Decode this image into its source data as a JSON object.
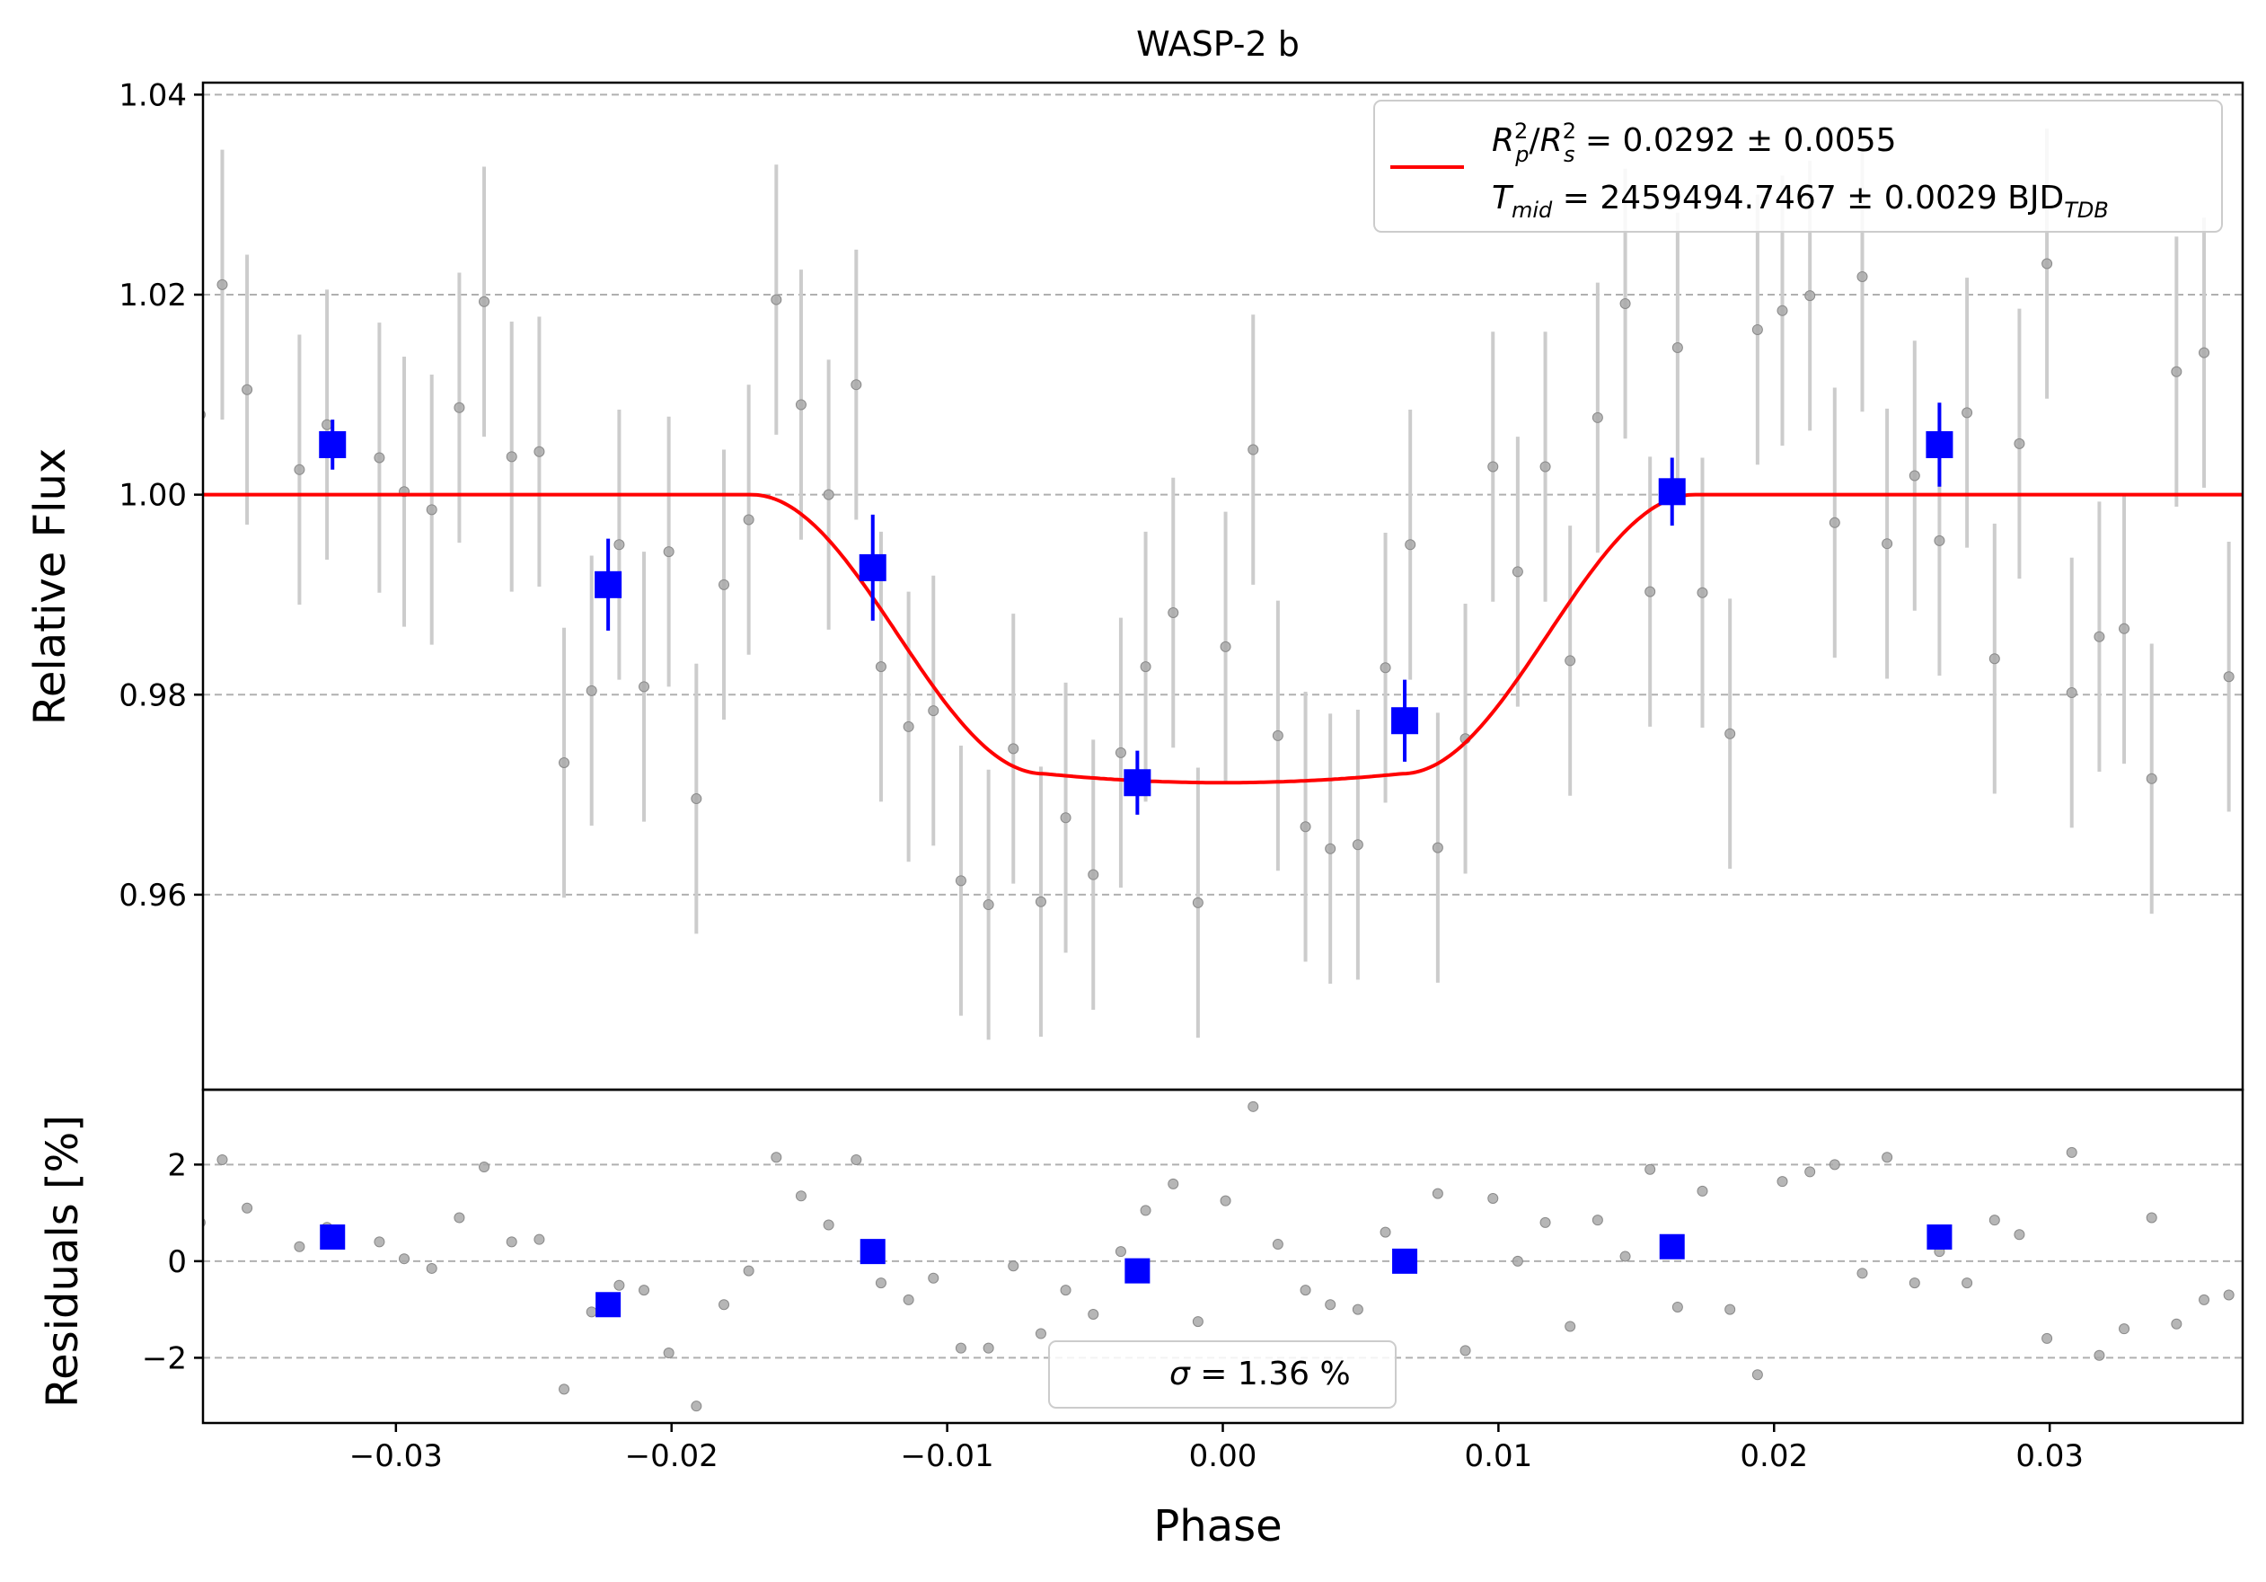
{
  "chart_data": [
    {
      "panel": "main",
      "type": "scatter",
      "title": "WASP-2 b",
      "xlabel": "",
      "ylabel": "Relative Flux",
      "xlim": [
        -0.037,
        0.037
      ],
      "ylim": [
        0.9405,
        1.0412
      ],
      "yticks": [
        "0.96",
        "0.98",
        "1.00",
        "1.02",
        "1.04"
      ],
      "ytick_values": [
        0.96,
        0.98,
        1.0,
        1.02,
        1.04
      ],
      "grid": "horizontal dashed",
      "legend_placement": "upper-right",
      "legend": {
        "line1": {
          "R": "R",
          "p": "p",
          "s": "s",
          "exp": "2",
          "rest": " = 0.0292 ± 0.0055"
        },
        "line2": {
          "T": "T",
          "mid": "mid",
          "rest": " = 2459494.7467 ± 0.0029 BJD",
          "sub": "TDB"
        }
      },
      "colors": {
        "raw": "#a9a9a9",
        "raw_err": "#cccccc",
        "binned": "#0000ff",
        "model": "#ff0000",
        "grid": "#b0b0b0"
      },
      "raw_series": {
        "x": [
          -0.0371,
          -0.0363,
          -0.0354,
          -0.0335,
          -0.0325,
          -0.0306,
          -0.0297,
          -0.0287,
          -0.0277,
          -0.0268,
          -0.0258,
          -0.0248,
          -0.0239,
          -0.0229,
          -0.0219,
          -0.021,
          -0.0201,
          -0.0191,
          -0.0181,
          -0.0172,
          -0.0162,
          -0.0153,
          -0.0143,
          -0.0133,
          -0.0124,
          -0.0114,
          -0.0105,
          -0.0095,
          -0.0085,
          -0.0076,
          -0.0066,
          -0.0057,
          -0.0047,
          -0.0037,
          -0.0028,
          -0.0018,
          -0.0009,
          0.0001,
          0.0011,
          0.002,
          0.003,
          0.0039,
          0.0049,
          0.0059,
          0.0068,
          0.0078,
          0.0088,
          0.0098,
          0.0107,
          0.0117,
          0.0126,
          0.0136,
          0.0146,
          0.0155,
          0.0165,
          0.0174,
          0.0184,
          0.0194,
          0.0203,
          0.0213,
          0.0222,
          0.0232,
          0.0241,
          0.0251,
          0.026,
          0.027,
          0.028,
          0.0289,
          0.0299,
          0.0308,
          0.0318,
          0.0327,
          0.0337,
          0.0346,
          0.0356,
          0.0365
        ],
        "y": [
          1.008,
          1.021,
          1.0105,
          1.0025,
          1.007,
          1.0037,
          1.0003,
          0.9985,
          1.0087,
          1.0193,
          1.0038,
          1.0043,
          0.9732,
          0.9804,
          0.995,
          0.9808,
          0.9943,
          0.9696,
          0.991,
          0.9975,
          1.0195,
          1.009,
          1.0,
          1.011,
          0.9828,
          0.9768,
          0.9784,
          0.9614,
          0.959,
          0.9746,
          0.9593,
          0.9677,
          0.962,
          0.9742,
          0.9828,
          0.9882,
          0.9592,
          0.9848,
          1.0045,
          0.9759,
          0.9668,
          0.9646,
          0.965,
          0.9827,
          0.995,
          0.9647,
          0.9756,
          1.0028,
          0.9923,
          1.0028,
          0.9834,
          1.0077,
          1.0191,
          0.9903,
          1.0147,
          0.9902,
          0.9761,
          1.0165,
          1.0184,
          1.0199,
          0.9972,
          1.0218,
          0.9951,
          1.0019,
          0.9954,
          1.0082,
          0.9836,
          1.0051,
          1.0231,
          0.9802,
          0.9858,
          0.9866,
          0.9716,
          1.0123,
          1.0142,
          0.9818
        ],
        "err": 0.0135
      },
      "binned_series": {
        "x": [
          -0.0323,
          -0.0223,
          -0.0127,
          -0.0031,
          0.0066,
          0.0163,
          0.026
        ],
        "y": [
          1.005,
          0.991,
          0.9927,
          0.9712,
          0.9774,
          1.0003,
          1.005
        ],
        "err": [
          0.0025,
          0.0046,
          0.0053,
          0.0032,
          0.0041,
          0.0034,
          0.0042
        ]
      },
      "model": {
        "baseline": 1.0,
        "depth": 0.0279,
        "t1": -0.0171,
        "t2": -0.0065,
        "t3": 0.0065,
        "t4": 0.0171
      }
    },
    {
      "panel": "residuals",
      "type": "scatter",
      "title": "",
      "xlabel": "Phase",
      "ylabel": "Residuals [%]",
      "xlim": [
        -0.037,
        0.037
      ],
      "ylim": [
        -3.35,
        3.55
      ],
      "xticks": [
        "−0.03",
        "−0.02",
        "−0.01",
        "0.00",
        "0.01",
        "0.02",
        "0.03"
      ],
      "xtick_values": [
        -0.03,
        -0.02,
        -0.01,
        0.0,
        0.01,
        0.02,
        0.03
      ],
      "yticks": [
        "−2",
        "0",
        "2"
      ],
      "ytick_values": [
        -2,
        0,
        2
      ],
      "grid": "horizontal dashed",
      "legend_placement": "lower-center",
      "legend": {
        "sigma": "σ",
        "rest": " = 1.36 %"
      },
      "raw_series": {
        "x": [
          -0.0371,
          -0.0363,
          -0.0354,
          -0.0335,
          -0.0325,
          -0.0306,
          -0.0297,
          -0.0287,
          -0.0277,
          -0.0268,
          -0.0258,
          -0.0248,
          -0.0239,
          -0.0229,
          -0.0219,
          -0.021,
          -0.0201,
          -0.0191,
          -0.0181,
          -0.0172,
          -0.0162,
          -0.0153,
          -0.0143,
          -0.0133,
          -0.0124,
          -0.0114,
          -0.0105,
          -0.0095,
          -0.0085,
          -0.0076,
          -0.0066,
          -0.0057,
          -0.0047,
          -0.0037,
          -0.0028,
          -0.0018,
          -0.0009,
          0.0001,
          0.0011,
          0.002,
          0.003,
          0.0039,
          0.0049,
          0.0059,
          0.0068,
          0.0078,
          0.0088,
          0.0098,
          0.0107,
          0.0117,
          0.0126,
          0.0136,
          0.0146,
          0.0155,
          0.0165,
          0.0174,
          0.0184,
          0.0194,
          0.0203,
          0.0213,
          0.0222,
          0.0232,
          0.0241,
          0.0251,
          0.026,
          0.027,
          0.028,
          0.0289,
          0.0299,
          0.0308,
          0.0318,
          0.0327,
          0.0337,
          0.0346,
          0.0356,
          0.0365
        ],
        "y": [
          0.8,
          2.1,
          1.1,
          0.3,
          0.7,
          0.4,
          0.05,
          -0.15,
          0.9,
          1.95,
          0.4,
          0.45,
          -2.65,
          -1.05,
          -0.5,
          -0.6,
          -1.9,
          -3.0,
          -0.9,
          -0.2,
          2.15,
          1.35,
          0.75,
          2.1,
          -0.45,
          -0.8,
          -0.35,
          -1.8,
          -1.8,
          -0.1,
          -1.5,
          -0.6,
          -1.1,
          0.2,
          1.05,
          1.6,
          -1.25,
          1.25,
          3.2,
          0.35,
          -0.6,
          -0.9,
          -1.0,
          0.6,
          0.05,
          1.4,
          -1.85,
          1.3,
          0.0,
          0.8,
          -1.35,
          0.85,
          0.1,
          1.9,
          -0.95,
          1.45,
          -1.0,
          -2.35,
          1.65,
          1.85,
          2.0,
          -0.25,
          2.15,
          -0.45,
          0.2,
          -0.45,
          0.85,
          0.55,
          -1.6,
          2.25,
          -1.95,
          -1.4,
          0.9,
          -1.3,
          -0.8,
          -0.7
        ]
      },
      "binned_series": {
        "x": [
          -0.0323,
          -0.0223,
          -0.0127,
          -0.0031,
          0.0066,
          0.0163,
          0.026
        ],
        "y": [
          0.5,
          -0.9,
          0.2,
          -0.2,
          0.0,
          0.3,
          0.5
        ]
      }
    }
  ]
}
